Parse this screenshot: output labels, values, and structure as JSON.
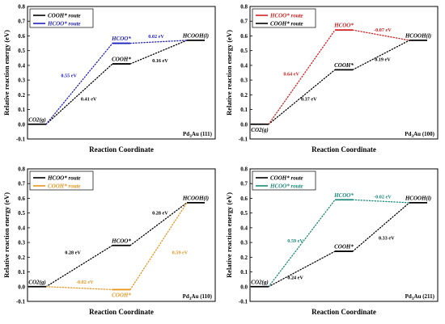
{
  "chart_data": [
    {
      "type": "line",
      "panel_label": "Pd$_3$Au (111)",
      "label_main": "Pd",
      "label_sub": "3",
      "label_rest": "Au (111)",
      "xlabel": "Reaction Coordinate",
      "ylabel": "Relative reaction energy (eV)",
      "ylim": [
        -0.1,
        0.8
      ],
      "yticks": [
        "-0.1",
        "0.0",
        "0.1",
        "0.2",
        "0.3",
        "0.4",
        "0.5",
        "0.6",
        "0.7",
        "0.8"
      ],
      "legend": [
        {
          "label": "COOH* route",
          "color": "#000000"
        },
        {
          "label": "HCOO* route",
          "color": "#1f1fbf"
        }
      ],
      "states": [
        {
          "name": "CO$_2$(g)",
          "text": "CO2(g)",
          "x": 0,
          "y": 0.0,
          "color": "#000000",
          "label_pos": "above"
        },
        {
          "name": "COOH*",
          "text": "COOH*",
          "x": 1,
          "y": 0.41,
          "color": "#000000",
          "label_pos": "above"
        },
        {
          "name": "HCOO*",
          "text": "HCOO*",
          "x": 1,
          "y": 0.55,
          "color": "#1f1fbf",
          "label_pos": "above"
        },
        {
          "name": "HCOOH(l)",
          "text": "HCOOH(l)",
          "x": 2,
          "y": 0.57,
          "color": "#000000",
          "label_pos": "above"
        }
      ],
      "connections": [
        {
          "from": 0,
          "to": 1,
          "color": "#000000"
        },
        {
          "from": 1,
          "to": 3,
          "color": "#000000"
        },
        {
          "from": 0,
          "to": 2,
          "color": "#1f1fbf"
        },
        {
          "from": 2,
          "to": 3,
          "color": "#1f1fbf"
        }
      ],
      "annotations": [
        {
          "text": "0.55 eV",
          "x": 0.4,
          "y": 0.32,
          "color": "#1f1fbf"
        },
        {
          "text": "0.41 eV",
          "x": 0.65,
          "y": 0.16,
          "color": "#000000"
        },
        {
          "text": "0.02 eV",
          "x": 1.5,
          "y": 0.585,
          "color": "#1f1fbf"
        },
        {
          "text": "0.16 eV",
          "x": 1.55,
          "y": 0.42,
          "color": "#000000"
        }
      ]
    },
    {
      "type": "line",
      "label_main": "Pd",
      "label_sub": "3",
      "label_rest": "Au (100)",
      "xlabel": "Reaction Coordinate",
      "ylabel": "Relative reaction energy (eV)",
      "ylim": [
        -0.1,
        0.8
      ],
      "yticks": [
        "-0.1",
        "0.0",
        "0.1",
        "0.2",
        "0.3",
        "0.4",
        "0.5",
        "0.6",
        "0.7",
        "0.8"
      ],
      "legend": [
        {
          "label": "HCOO* route",
          "color": "#d42020"
        },
        {
          "label": "COOH* route",
          "color": "#000000"
        }
      ],
      "states": [
        {
          "name": "CO2(g)",
          "text": "CO2(g)",
          "x": 0,
          "y": 0.0,
          "color": "#000000",
          "label_pos": "below"
        },
        {
          "name": "COOH*",
          "text": "COOH*",
          "x": 1,
          "y": 0.37,
          "color": "#000000",
          "label_pos": "above"
        },
        {
          "name": "HCOO*",
          "text": "HCOO*",
          "x": 1,
          "y": 0.64,
          "color": "#d42020",
          "label_pos": "above"
        },
        {
          "name": "HCOOH(l)",
          "text": "HCOOH(l)",
          "x": 2,
          "y": 0.57,
          "color": "#000000",
          "label_pos": "above"
        }
      ],
      "connections": [
        {
          "from": 0,
          "to": 1,
          "color": "#000000"
        },
        {
          "from": 1,
          "to": 3,
          "color": "#000000"
        },
        {
          "from": 0,
          "to": 2,
          "color": "#d42020"
        },
        {
          "from": 2,
          "to": 3,
          "color": "#d42020"
        }
      ],
      "annotations": [
        {
          "text": "0.64 eV",
          "x": 0.4,
          "y": 0.33,
          "color": "#d42020"
        },
        {
          "text": "0.37 eV",
          "x": 0.62,
          "y": 0.16,
          "color": "#000000"
        },
        {
          "text": "-0.07 eV",
          "x": 1.55,
          "y": 0.63,
          "color": "#d42020"
        },
        {
          "text": "0.19 eV",
          "x": 1.55,
          "y": 0.43,
          "color": "#000000"
        }
      ]
    },
    {
      "type": "line",
      "label_main": "Pd",
      "label_sub": "3",
      "label_rest": "Au (110)",
      "xlabel": "Reaction Coordinate",
      "ylabel": "Relative reaction energy (eV)",
      "ylim": [
        -0.1,
        0.8
      ],
      "yticks": [
        "-0.1",
        "0.0",
        "0.1",
        "0.2",
        "0.3",
        "0.4",
        "0.5",
        "0.6",
        "0.7",
        "0.8"
      ],
      "legend": [
        {
          "label": "HCOO* route",
          "color": "#000000"
        },
        {
          "label": "COOH* route",
          "color": "#e8961e"
        }
      ],
      "states": [
        {
          "name": "CO2(g)",
          "text": "CO2(g)",
          "x": 0,
          "y": 0.0,
          "color": "#000000",
          "label_pos": "above"
        },
        {
          "name": "HCOO*",
          "text": "HCOO*",
          "x": 1,
          "y": 0.28,
          "color": "#000000",
          "label_pos": "above"
        },
        {
          "name": "COOH*",
          "text": "COOH*",
          "x": 1,
          "y": -0.02,
          "color": "#e8961e",
          "label_pos": "below"
        },
        {
          "name": "HCOOH(l)",
          "text": "HCOOH(l)",
          "x": 2,
          "y": 0.57,
          "color": "#000000",
          "label_pos": "above"
        }
      ],
      "connections": [
        {
          "from": 0,
          "to": 1,
          "color": "#000000"
        },
        {
          "from": 1,
          "to": 3,
          "color": "#000000"
        },
        {
          "from": 0,
          "to": 2,
          "color": "#e8961e"
        },
        {
          "from": 2,
          "to": 3,
          "color": "#e8961e"
        }
      ],
      "annotations": [
        {
          "text": "0.28 eV",
          "x": 0.45,
          "y": 0.22,
          "color": "#000000"
        },
        {
          "text": "-0.02 eV",
          "x": 0.6,
          "y": 0.02,
          "color": "#e8961e"
        },
        {
          "text": "0.28 eV",
          "x": 1.55,
          "y": 0.49,
          "color": "#000000"
        },
        {
          "text": "0.59 eV",
          "x": 1.8,
          "y": 0.22,
          "color": "#e8961e"
        }
      ]
    },
    {
      "type": "line",
      "label_main": "Pd",
      "label_sub": "3",
      "label_rest": "Au (211)",
      "xlabel": "Reaction Coordinate",
      "ylabel": "Relative reaction energy (eV)",
      "ylim": [
        -0.1,
        0.8
      ],
      "yticks": [
        "-0.1",
        "0.0",
        "0.1",
        "0.2",
        "0.3",
        "0.4",
        "0.5",
        "0.6",
        "0.7",
        "0.8"
      ],
      "legend": [
        {
          "label": "COOH* route",
          "color": "#000000"
        },
        {
          "label": "HCOO* route",
          "color": "#1a8a7a"
        }
      ],
      "states": [
        {
          "name": "CO2(g)",
          "text": "CO2(g)",
          "x": 0,
          "y": 0.0,
          "color": "#000000",
          "label_pos": "above"
        },
        {
          "name": "COOH*",
          "text": "COOH*",
          "x": 1,
          "y": 0.24,
          "color": "#000000",
          "label_pos": "above"
        },
        {
          "name": "HCOO*",
          "text": "HCOO*",
          "x": 1,
          "y": 0.59,
          "color": "#1a8a7a",
          "label_pos": "above"
        },
        {
          "name": "HCOOH(l)",
          "text": "HCOOH(l)",
          "x": 2,
          "y": 0.57,
          "color": "#000000",
          "label_pos": "above"
        }
      ],
      "connections": [
        {
          "from": 0,
          "to": 1,
          "color": "#000000"
        },
        {
          "from": 1,
          "to": 3,
          "color": "#000000"
        },
        {
          "from": 0,
          "to": 2,
          "color": "#1a8a7a"
        },
        {
          "from": 2,
          "to": 3,
          "color": "#1a8a7a"
        }
      ],
      "annotations": [
        {
          "text": "0.59 eV",
          "x": 0.45,
          "y": 0.3,
          "color": "#1a8a7a"
        },
        {
          "text": "0.24 eV",
          "x": 0.45,
          "y": 0.05,
          "color": "#000000"
        },
        {
          "text": "-0.02 eV",
          "x": 1.55,
          "y": 0.6,
          "color": "#1a8a7a"
        },
        {
          "text": "0.33 eV",
          "x": 1.6,
          "y": 0.32,
          "color": "#000000"
        }
      ]
    }
  ]
}
